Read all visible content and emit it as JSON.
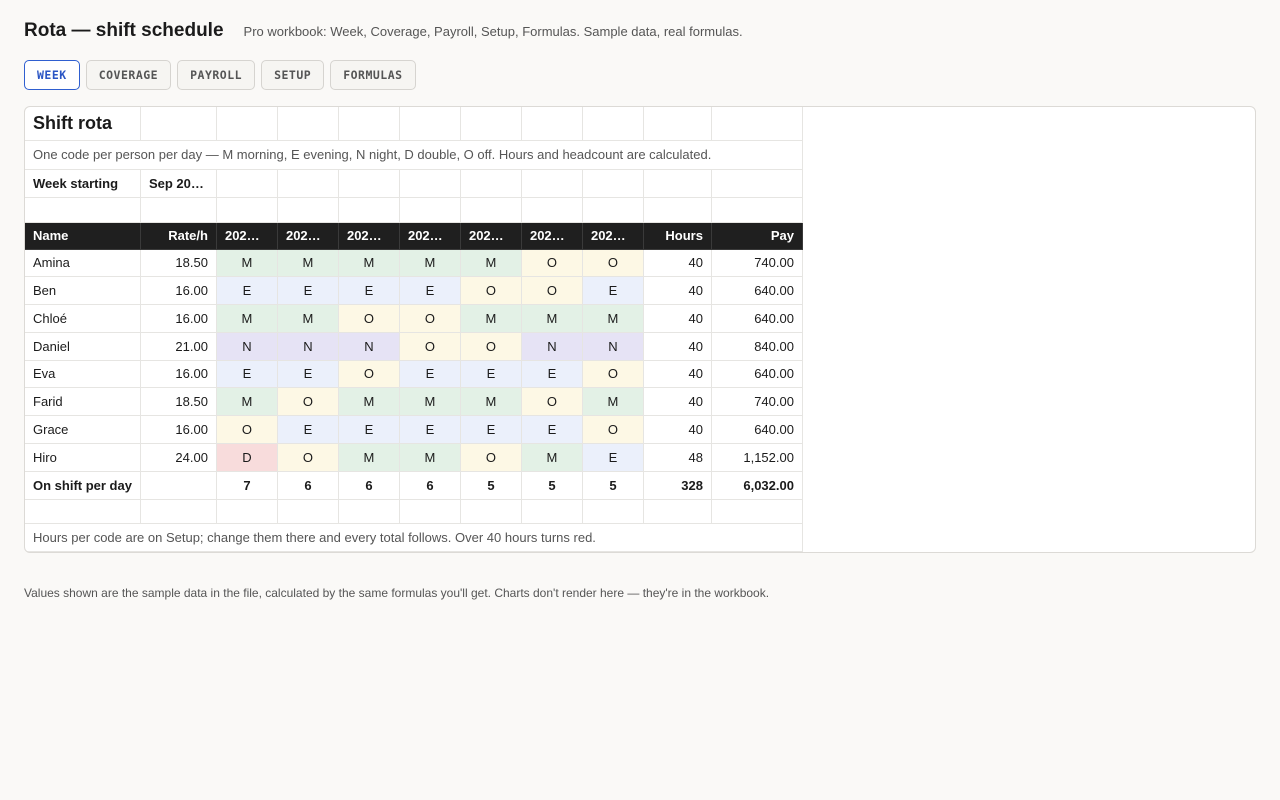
{
  "header": {
    "title": "Rota — shift schedule",
    "subtitle": "Pro workbook: Week, Coverage, Payroll, Setup, Formulas. Sample data, real formulas."
  },
  "tabs": [
    "WEEK",
    "COVERAGE",
    "PAYROLL",
    "SETUP",
    "FORMULAS"
  ],
  "sheet": {
    "title": "Shift rota",
    "description": "One code per person per day — M morning, E evening, N night, D double, O off. Hours and headcount are calculated.",
    "week_label": "Week starting",
    "week_value": "Sep 20…",
    "columns": [
      "Name",
      "Rate/h",
      "202…",
      "202…",
      "202…",
      "202…",
      "202…",
      "202…",
      "202…",
      "Hours",
      "Pay"
    ],
    "rows": [
      [
        "Amina",
        "18.50",
        "M",
        "M",
        "M",
        "M",
        "M",
        "O",
        "O",
        "40",
        "740.00"
      ],
      [
        "Ben",
        "16.00",
        "E",
        "E",
        "E",
        "E",
        "O",
        "O",
        "E",
        "40",
        "640.00"
      ],
      [
        "Chloé",
        "16.00",
        "M",
        "M",
        "O",
        "O",
        "M",
        "M",
        "M",
        "40",
        "640.00"
      ],
      [
        "Daniel",
        "21.00",
        "N",
        "N",
        "N",
        "O",
        "O",
        "N",
        "N",
        "40",
        "840.00"
      ],
      [
        "Eva",
        "16.00",
        "E",
        "E",
        "O",
        "E",
        "E",
        "E",
        "O",
        "40",
        "640.00"
      ],
      [
        "Farid",
        "18.50",
        "M",
        "O",
        "M",
        "M",
        "M",
        "O",
        "M",
        "40",
        "740.00"
      ],
      [
        "Grace",
        "16.00",
        "O",
        "E",
        "E",
        "E",
        "E",
        "E",
        "O",
        "40",
        "640.00"
      ],
      [
        "Hiro",
        "24.00",
        "D",
        "O",
        "M",
        "M",
        "O",
        "M",
        "E",
        "48",
        "1,152.00"
      ]
    ],
    "totals": {
      "label": "On shift per day",
      "days": [
        "7",
        "6",
        "6",
        "6",
        "5",
        "5",
        "5"
      ],
      "hours": "328",
      "pay": "6,032.00"
    },
    "note": "Hours per code are on Setup; change them there and every total follows. Over 40 hours turns red."
  },
  "footer": "Values shown are the sample data in the file, calculated by the same formulas you'll get. Charts don't render here — they're in the workbook."
}
